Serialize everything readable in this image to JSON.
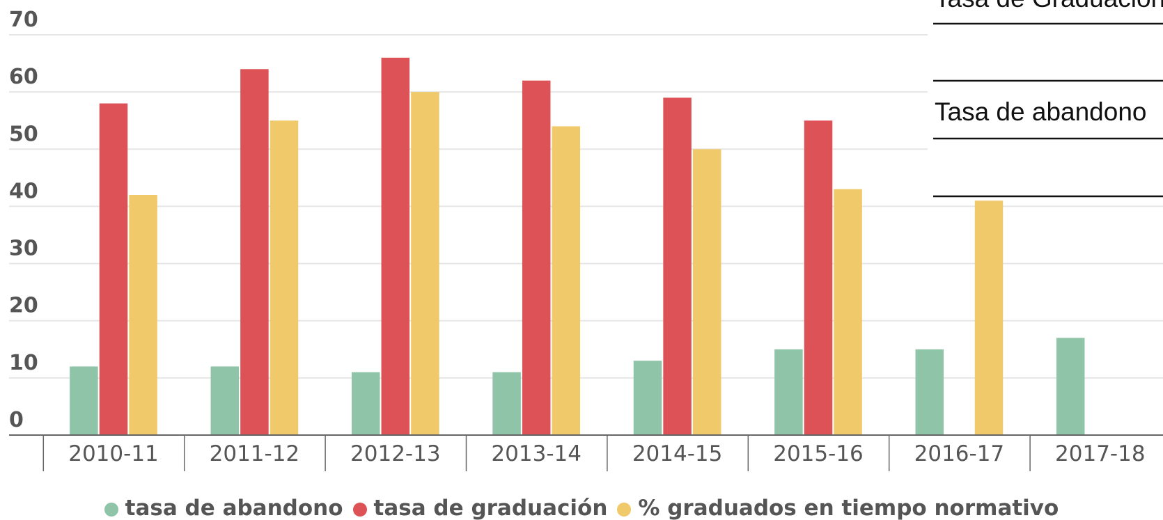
{
  "chart_data": {
    "type": "bar",
    "categories": [
      "2010-11",
      "2011-12",
      "2012-13",
      "2013-14",
      "2014-15",
      "2015-16",
      "2016-17",
      "2017-18"
    ],
    "series": [
      {
        "name": "tasa de abandono",
        "color": "#8fc4a8",
        "values": [
          12,
          12,
          11,
          11,
          13,
          15,
          15,
          17
        ]
      },
      {
        "name": "tasa de graduación",
        "color": "#dc5256",
        "values": [
          58,
          64,
          66,
          62,
          59,
          55,
          null,
          null
        ]
      },
      {
        "name": "% graduados en tiempo normativo",
        "color": "#efc96a",
        "values": [
          42,
          55,
          60,
          54,
          50,
          43,
          41,
          null
        ]
      }
    ],
    "ylim": [
      0,
      70
    ],
    "yticks": [
      0,
      10,
      20,
      30,
      40,
      50,
      60,
      70
    ],
    "grid": true,
    "legend": "bottom",
    "annotations": [
      "Tasa de Graduación",
      "Tasa de abandono"
    ]
  }
}
